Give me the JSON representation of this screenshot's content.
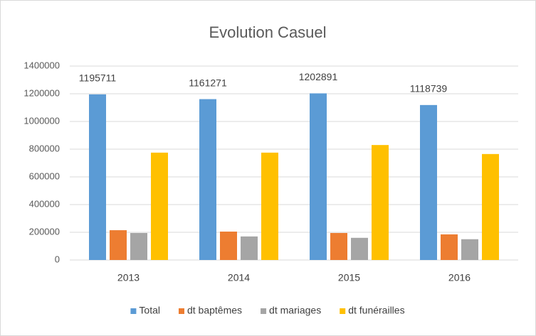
{
  "chart_data": {
    "type": "bar",
    "title": "Evolution Casuel",
    "categories": [
      "2013",
      "2014",
      "2015",
      "2016"
    ],
    "series": [
      {
        "name": "Total",
        "color": "#5b9bd5",
        "values": [
          1195711,
          1161271,
          1202891,
          1118739
        ],
        "data_labels": true
      },
      {
        "name": "dt baptêmes",
        "color": "#ed7d31",
        "values": [
          215000,
          205000,
          195000,
          185000
        ]
      },
      {
        "name": "dt mariages",
        "color": "#a5a5a5",
        "values": [
          195000,
          170000,
          160000,
          150000
        ]
      },
      {
        "name": "dt funérailles",
        "color": "#ffc000",
        "values": [
          775000,
          775000,
          830000,
          765000
        ]
      }
    ],
    "ylim": [
      0,
      1400000
    ],
    "yticks": [
      0,
      200000,
      400000,
      600000,
      800000,
      1000000,
      1200000,
      1400000
    ],
    "grid": true,
    "legend": "bottom"
  }
}
